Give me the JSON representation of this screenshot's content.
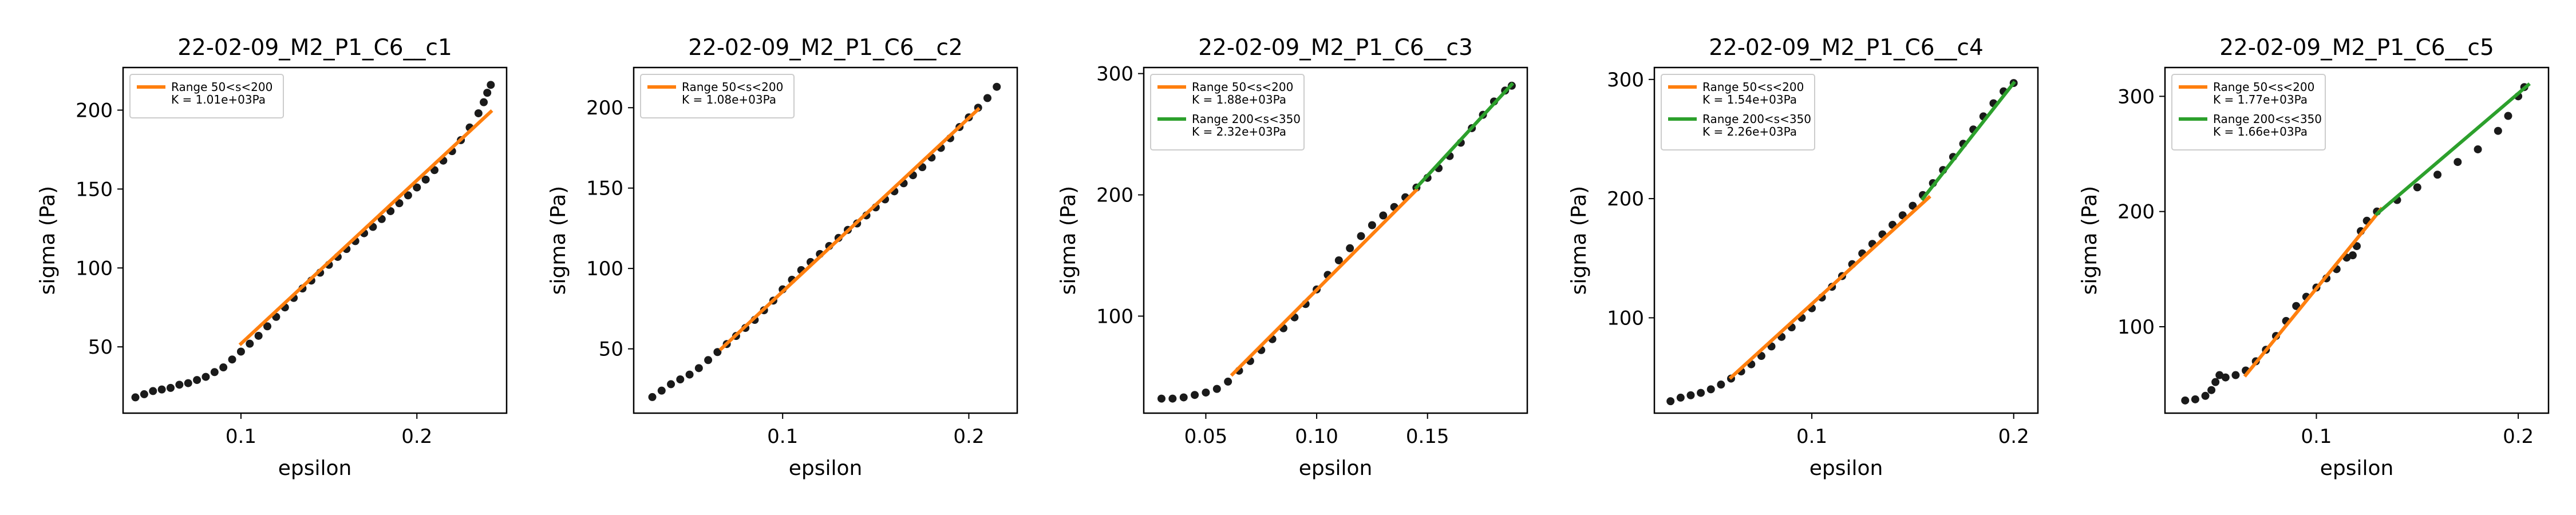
{
  "chart_data": [
    {
      "type": "scatter",
      "title": "22-02-09_M2_P1_C6__c1",
      "xlabel": "epsilon",
      "ylabel": "sigma (Pa)",
      "xlim": [
        0.033,
        0.251
      ],
      "ylim": [
        8,
        227
      ],
      "xticks": [
        0.1,
        0.2
      ],
      "xtick_labels": [
        "0.1",
        "0.2"
      ],
      "yticks": [
        50,
        100,
        150,
        200
      ],
      "ytick_labels": [
        "50",
        "100",
        "150",
        "200"
      ],
      "legend_position": "top-left",
      "points": [
        [
          0.04,
          18
        ],
        [
          0.045,
          20
        ],
        [
          0.05,
          22
        ],
        [
          0.055,
          23
        ],
        [
          0.06,
          24
        ],
        [
          0.065,
          26
        ],
        [
          0.07,
          27
        ],
        [
          0.075,
          29
        ],
        [
          0.08,
          31
        ],
        [
          0.085,
          34
        ],
        [
          0.09,
          37
        ],
        [
          0.095,
          42
        ],
        [
          0.1,
          47
        ],
        [
          0.105,
          52
        ],
        [
          0.11,
          57
        ],
        [
          0.115,
          63
        ],
        [
          0.12,
          69
        ],
        [
          0.125,
          75
        ],
        [
          0.13,
          81
        ],
        [
          0.135,
          87
        ],
        [
          0.14,
          92
        ],
        [
          0.145,
          97
        ],
        [
          0.15,
          102
        ],
        [
          0.155,
          107
        ],
        [
          0.16,
          112
        ],
        [
          0.165,
          117
        ],
        [
          0.17,
          122
        ],
        [
          0.175,
          126
        ],
        [
          0.18,
          131
        ],
        [
          0.185,
          136
        ],
        [
          0.19,
          141
        ],
        [
          0.195,
          146
        ],
        [
          0.2,
          151
        ],
        [
          0.205,
          156
        ],
        [
          0.21,
          162
        ],
        [
          0.215,
          168
        ],
        [
          0.22,
          174
        ],
        [
          0.225,
          181
        ],
        [
          0.23,
          189
        ],
        [
          0.235,
          198
        ],
        [
          0.238,
          205
        ],
        [
          0.24,
          211
        ],
        [
          0.242,
          216
        ]
      ],
      "series": [
        {
          "name": "Range 50<s<200",
          "stat": "K = 1.01e+03Pa",
          "color": "#ff7f0e",
          "x": [
            0.1,
            0.242
          ],
          "y": [
            52,
            199
          ]
        }
      ]
    },
    {
      "type": "scatter",
      "title": "22-02-09_M2_P1_C6__c2",
      "xlabel": "epsilon",
      "ylabel": "sigma (Pa)",
      "xlim": [
        0.02,
        0.226
      ],
      "ylim": [
        10,
        225
      ],
      "xticks": [
        0.1,
        0.2
      ],
      "xtick_labels": [
        "0.1",
        "0.2"
      ],
      "yticks": [
        50,
        100,
        150,
        200
      ],
      "ytick_labels": [
        "50",
        "100",
        "150",
        "200"
      ],
      "legend_position": "top-left",
      "points": [
        [
          0.03,
          20
        ],
        [
          0.035,
          24
        ],
        [
          0.04,
          28
        ],
        [
          0.045,
          31
        ],
        [
          0.05,
          34
        ],
        [
          0.055,
          38
        ],
        [
          0.06,
          43
        ],
        [
          0.065,
          48
        ],
        [
          0.07,
          53
        ],
        [
          0.075,
          58
        ],
        [
          0.08,
          63
        ],
        [
          0.085,
          68
        ],
        [
          0.09,
          74
        ],
        [
          0.095,
          80
        ],
        [
          0.1,
          87
        ],
        [
          0.105,
          93
        ],
        [
          0.11,
          99
        ],
        [
          0.115,
          104
        ],
        [
          0.12,
          109
        ],
        [
          0.125,
          114
        ],
        [
          0.13,
          119
        ],
        [
          0.135,
          124
        ],
        [
          0.14,
          128
        ],
        [
          0.145,
          133
        ],
        [
          0.15,
          138
        ],
        [
          0.155,
          143
        ],
        [
          0.16,
          148
        ],
        [
          0.165,
          153
        ],
        [
          0.17,
          158
        ],
        [
          0.175,
          163
        ],
        [
          0.18,
          169
        ],
        [
          0.185,
          175
        ],
        [
          0.19,
          181
        ],
        [
          0.195,
          188
        ],
        [
          0.2,
          194
        ],
        [
          0.205,
          200
        ],
        [
          0.21,
          206
        ],
        [
          0.215,
          213
        ]
      ],
      "series": [
        {
          "name": "Range 50<s<200",
          "stat": "K = 1.08e+03Pa",
          "color": "#ff7f0e",
          "x": [
            0.067,
            0.205
          ],
          "y": [
            50,
            199
          ]
        }
      ]
    },
    {
      "type": "scatter",
      "title": "22-02-09_M2_P1_C6__c3",
      "xlabel": "epsilon",
      "ylabel": "sigma (Pa)",
      "xlim": [
        0.022,
        0.195
      ],
      "ylim": [
        20,
        305
      ],
      "xticks": [
        0.05,
        0.1,
        0.15
      ],
      "xtick_labels": [
        "0.05",
        "0.10",
        "0.15"
      ],
      "yticks": [
        100,
        200,
        300
      ],
      "ytick_labels": [
        "100",
        "200",
        "300"
      ],
      "legend_position": "top-left",
      "points": [
        [
          0.03,
          32
        ],
        [
          0.035,
          32
        ],
        [
          0.04,
          33
        ],
        [
          0.045,
          35
        ],
        [
          0.05,
          37
        ],
        [
          0.055,
          40
        ],
        [
          0.06,
          46
        ],
        [
          0.065,
          55
        ],
        [
          0.07,
          63
        ],
        [
          0.075,
          72
        ],
        [
          0.08,
          81
        ],
        [
          0.085,
          90
        ],
        [
          0.09,
          99
        ],
        [
          0.095,
          110
        ],
        [
          0.1,
          122
        ],
        [
          0.105,
          134
        ],
        [
          0.11,
          146
        ],
        [
          0.115,
          156
        ],
        [
          0.12,
          166
        ],
        [
          0.125,
          175
        ],
        [
          0.13,
          183
        ],
        [
          0.135,
          190
        ],
        [
          0.14,
          198
        ],
        [
          0.145,
          206
        ],
        [
          0.15,
          214
        ],
        [
          0.155,
          222
        ],
        [
          0.16,
          232
        ],
        [
          0.165,
          243
        ],
        [
          0.17,
          255
        ],
        [
          0.175,
          266
        ],
        [
          0.18,
          277
        ],
        [
          0.185,
          286
        ],
        [
          0.188,
          290
        ]
      ],
      "series": [
        {
          "name": "Range 50<s<200",
          "stat": "K = 1.88e+03Pa",
          "color": "#ff7f0e",
          "x": [
            0.062,
            0.145
          ],
          "y": [
            52,
            204
          ]
        },
        {
          "name": "Range 200<s<350",
          "stat": "K = 2.32e+03Pa",
          "color": "#2ca02c",
          "x": [
            0.145,
            0.188
          ],
          "y": [
            206,
            291
          ]
        }
      ]
    },
    {
      "type": "scatter",
      "title": "22-02-09_M2_P1_C6__c4",
      "xlabel": "epsilon",
      "ylabel": "sigma (Pa)",
      "xlim": [
        0.022,
        0.212
      ],
      "ylim": [
        20,
        310
      ],
      "xticks": [
        0.1,
        0.2
      ],
      "xtick_labels": [
        "0.1",
        "0.2"
      ],
      "yticks": [
        100,
        200,
        300
      ],
      "ytick_labels": [
        "100",
        "200",
        "300"
      ],
      "legend_position": "top-left",
      "points": [
        [
          0.03,
          30
        ],
        [
          0.035,
          33
        ],
        [
          0.04,
          35
        ],
        [
          0.045,
          37
        ],
        [
          0.05,
          40
        ],
        [
          0.055,
          44
        ],
        [
          0.06,
          49
        ],
        [
          0.065,
          55
        ],
        [
          0.07,
          61
        ],
        [
          0.075,
          68
        ],
        [
          0.08,
          76
        ],
        [
          0.085,
          84
        ],
        [
          0.09,
          92
        ],
        [
          0.095,
          100
        ],
        [
          0.1,
          108
        ],
        [
          0.105,
          117
        ],
        [
          0.11,
          126
        ],
        [
          0.115,
          135
        ],
        [
          0.12,
          145
        ],
        [
          0.125,
          154
        ],
        [
          0.13,
          162
        ],
        [
          0.135,
          170
        ],
        [
          0.14,
          178
        ],
        [
          0.145,
          186
        ],
        [
          0.15,
          194
        ],
        [
          0.155,
          203
        ],
        [
          0.16,
          213
        ],
        [
          0.165,
          224
        ],
        [
          0.17,
          235
        ],
        [
          0.175,
          246
        ],
        [
          0.18,
          258
        ],
        [
          0.185,
          269
        ],
        [
          0.19,
          280
        ],
        [
          0.195,
          290
        ],
        [
          0.2,
          297
        ]
      ],
      "series": [
        {
          "name": "Range 50<s<200",
          "stat": "K = 1.54e+03Pa",
          "color": "#ff7f0e",
          "x": [
            0.06,
            0.158
          ],
          "y": [
            50,
            201
          ]
        },
        {
          "name": "Range 200<s<350",
          "stat": "K = 2.26e+03Pa",
          "color": "#2ca02c",
          "x": [
            0.155,
            0.2
          ],
          "y": [
            200,
            297
          ]
        }
      ]
    },
    {
      "type": "scatter",
      "title": "22-02-09_M2_P1_C6__c5",
      "xlabel": "epsilon",
      "ylabel": "sigma (Pa)",
      "xlim": [
        0.025,
        0.215
      ],
      "ylim": [
        25,
        325
      ],
      "xticks": [
        0.1,
        0.2
      ],
      "xtick_labels": [
        "0.1",
        "0.2"
      ],
      "yticks": [
        100,
        200,
        300
      ],
      "ytick_labels": [
        "100",
        "200",
        "300"
      ],
      "legend_position": "top-left",
      "points": [
        [
          0.035,
          36
        ],
        [
          0.04,
          37
        ],
        [
          0.045,
          40
        ],
        [
          0.048,
          45
        ],
        [
          0.05,
          52
        ],
        [
          0.052,
          58
        ],
        [
          0.055,
          56
        ],
        [
          0.06,
          58
        ],
        [
          0.065,
          62
        ],
        [
          0.07,
          70
        ],
        [
          0.075,
          80
        ],
        [
          0.08,
          92
        ],
        [
          0.085,
          105
        ],
        [
          0.09,
          118
        ],
        [
          0.095,
          126
        ],
        [
          0.1,
          134
        ],
        [
          0.105,
          142
        ],
        [
          0.11,
          150
        ],
        [
          0.115,
          160
        ],
        [
          0.12,
          170
        ],
        [
          0.118,
          162
        ],
        [
          0.122,
          183
        ],
        [
          0.125,
          192
        ],
        [
          0.13,
          200
        ],
        [
          0.14,
          210
        ],
        [
          0.15,
          221
        ],
        [
          0.16,
          232
        ],
        [
          0.17,
          243
        ],
        [
          0.18,
          254
        ],
        [
          0.19,
          270
        ],
        [
          0.195,
          283
        ],
        [
          0.2,
          300
        ],
        [
          0.203,
          308
        ]
      ],
      "series": [
        {
          "name": "Range 50<s<200",
          "stat": "K = 1.77e+03Pa",
          "color": "#ff7f0e",
          "x": [
            0.065,
            0.132
          ],
          "y": [
            58,
            202
          ]
        },
        {
          "name": "Range 200<s<350",
          "stat": "K = 1.66e+03Pa",
          "color": "#2ca02c",
          "x": [
            0.13,
            0.205
          ],
          "y": [
            198,
            310
          ]
        }
      ]
    }
  ]
}
